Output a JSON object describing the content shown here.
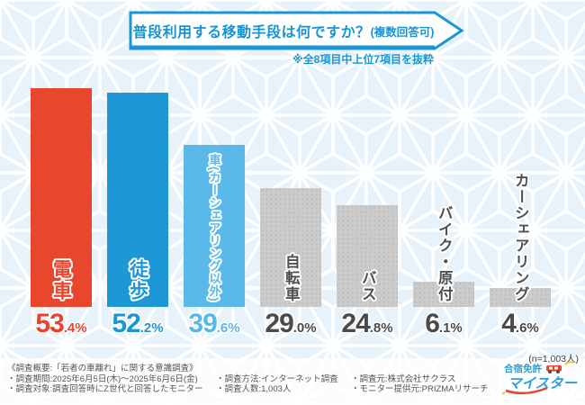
{
  "banner": {
    "title": "普段利用する移動手段は何ですか？",
    "suffix": "(複数回答可)"
  },
  "note": "※全8項目中上位7項目を抜粋",
  "sample_size": "(n=1,003人)",
  "chart_data": {
    "type": "bar",
    "title": "普段利用する移動手段は何ですか？(複数回答可)",
    "subtitle": "※全8項目中上位7項目を抜粋",
    "categories": [
      "電車",
      "徒歩",
      "車(カーシェアリング以外)",
      "自転車",
      "バス",
      "バイク・原付",
      "カーシェアリング"
    ],
    "values": [
      53.4,
      52.2,
      39.6,
      29.0,
      24.8,
      6.1,
      4.6
    ],
    "unit": "%",
    "n": "1,003",
    "bar_colors": [
      "#e8472e",
      "#1e97d7",
      "#5ab9e9",
      "#cbcbcb",
      "#cbcbcb",
      "#cbcbcb",
      "#cbcbcb"
    ],
    "label_colors": [
      "#e8472e",
      "#1e97d7",
      "#5ab9e9",
      "#4f4f4f",
      "#4f4f4f",
      "#4f4f4f",
      "#4f4f4f"
    ],
    "value_colors": [
      "#e8432c",
      "#1a96d5",
      "#56b7e8",
      "#4a4a4a",
      "#4a4a4a",
      "#4a4a4a",
      "#4a4a4a"
    ],
    "ylim": [
      0,
      60
    ],
    "grid": false,
    "legend": false
  },
  "survey": {
    "heading": "《調査概要:「若者の車離れ」に関する意識調査》",
    "row1": [
      "・調査期間:2025年6月5日(木)〜2025年6月6日(金)",
      "・調査方法:インターネット調査",
      "・調査元:株式会社サクラス"
    ],
    "row2": [
      "・調査対象:調査回答時にZ世代と回答したモニター",
      "・調査人数:1,003人",
      "・モニター提供元:PRIZMAリサーチ"
    ]
  },
  "logo": {
    "line1": "合宿免許",
    "line2": "マイスター"
  },
  "colors": {
    "accent_blue": "#1a96d5",
    "accent_red": "#e8432c",
    "pattern_bg": "#e7f2fb"
  }
}
